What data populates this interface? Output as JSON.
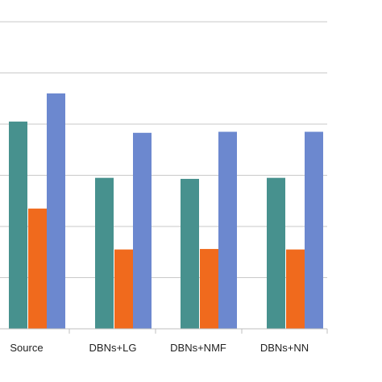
{
  "chart_data": {
    "type": "bar",
    "categories": [
      "Source",
      "DBNs+LG",
      "DBNs+NMF",
      "DBNs+NN"
    ],
    "series": [
      {
        "color": "#47918E",
        "values": [
          4.05,
          2.95,
          2.93,
          2.95
        ]
      },
      {
        "color": "#F06A1D",
        "values": [
          2.35,
          1.55,
          1.56,
          1.55
        ]
      },
      {
        "color": "#6C88CF",
        "values": [
          4.6,
          3.83,
          3.85,
          3.85
        ]
      }
    ],
    "ylim": [
      0,
      6
    ],
    "gridlines": [
      1,
      2,
      3,
      4,
      5,
      6
    ],
    "grid": true,
    "legend": false
  }
}
